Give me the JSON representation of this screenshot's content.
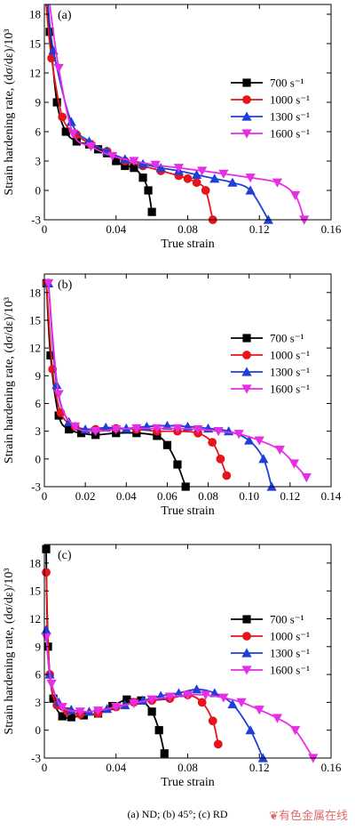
{
  "caption": "(a) ND; (b) 45°; (c) RD",
  "watermark": "有色金属在线",
  "legend": [
    "700 s⁻¹",
    "1000 s⁻¹",
    "1300 s⁻¹",
    "1600 s⁻¹"
  ],
  "colors": [
    "#000000",
    "#e8141b",
    "#1f3fd6",
    "#e62ee6"
  ],
  "markers": [
    "square",
    "circle",
    "triangle-up",
    "triangle-down"
  ],
  "chart_data": [
    {
      "type": "line",
      "panel_label": "(a)",
      "xlabel": "True strain",
      "ylabel": "Strain hardening rate, (dσ/dε)/10³",
      "xlim": [
        0,
        0.16
      ],
      "ylim": [
        -3,
        19
      ],
      "xticks": [
        0,
        0.04,
        0.08,
        0.12,
        0.16
      ],
      "xtick_labels": [
        "0",
        "0.04",
        "0.08",
        "0.12",
        "0.16"
      ],
      "yticks": [
        -3,
        0,
        3,
        6,
        9,
        12,
        15,
        18
      ],
      "legend_position": "right",
      "series": [
        {
          "name": "700 s⁻¹",
          "x": [
            0.001,
            0.003,
            0.007,
            0.012,
            0.018,
            0.025,
            0.03,
            0.035,
            0.04,
            0.045,
            0.05,
            0.055,
            0.058,
            0.06
          ],
          "y": [
            19,
            16.2,
            9.0,
            6.0,
            5.0,
            4.7,
            4.2,
            3.8,
            3.0,
            2.5,
            2.3,
            1.3,
            0.0,
            -2.2
          ]
        },
        {
          "name": "1000 s⁻¹",
          "x": [
            0.001,
            0.004,
            0.01,
            0.018,
            0.026,
            0.035,
            0.045,
            0.055,
            0.065,
            0.075,
            0.08,
            0.085,
            0.09,
            0.094
          ],
          "y": [
            19,
            13.5,
            7.5,
            5.7,
            4.7,
            4.0,
            3.0,
            2.5,
            2.0,
            1.5,
            1.2,
            0.8,
            0.0,
            -3.0
          ]
        },
        {
          "name": "1300 s⁻¹",
          "x": [
            0.002,
            0.005,
            0.015,
            0.025,
            0.035,
            0.045,
            0.055,
            0.065,
            0.075,
            0.085,
            0.095,
            0.105,
            0.115,
            0.125
          ],
          "y": [
            19,
            14.3,
            7.0,
            5.0,
            4.0,
            3.2,
            2.7,
            2.3,
            2.0,
            1.6,
            1.2,
            0.8,
            0.0,
            -3.0
          ]
        },
        {
          "name": "1600 s⁻¹",
          "x": [
            0.003,
            0.008,
            0.016,
            0.026,
            0.038,
            0.05,
            0.062,
            0.075,
            0.088,
            0.1,
            0.115,
            0.13,
            0.14,
            0.145
          ],
          "y": [
            19,
            12.5,
            5.8,
            4.5,
            3.5,
            3.0,
            2.6,
            2.3,
            2.0,
            1.7,
            1.3,
            0.8,
            -0.5,
            -3.0
          ]
        }
      ]
    },
    {
      "type": "line",
      "panel_label": "(b)",
      "xlabel": "True strain",
      "ylabel": "Strain hardening rate, (dσ/dε)/10³",
      "xlim": [
        0,
        0.14
      ],
      "ylim": [
        -3,
        20
      ],
      "xticks": [
        0,
        0.02,
        0.04,
        0.06,
        0.08,
        0.1,
        0.12,
        0.14
      ],
      "xtick_labels": [
        "0",
        "0.02",
        "0.04",
        "0.06",
        "0.08",
        "0.10",
        "0.12",
        "0.14"
      ],
      "yticks": [
        -3,
        0,
        3,
        6,
        9,
        12,
        15,
        18
      ],
      "legend_position": "right",
      "series": [
        {
          "name": "700 s⁻¹",
          "x": [
            0.001,
            0.003,
            0.007,
            0.012,
            0.018,
            0.025,
            0.035,
            0.045,
            0.055,
            0.06,
            0.065,
            0.069
          ],
          "y": [
            19,
            11.2,
            4.7,
            3.2,
            2.8,
            2.6,
            2.8,
            2.8,
            2.5,
            1.5,
            -0.6,
            -3.0
          ]
        },
        {
          "name": "1000 s⁻¹",
          "x": [
            0.001,
            0.004,
            0.008,
            0.015,
            0.025,
            0.035,
            0.045,
            0.055,
            0.065,
            0.075,
            0.082,
            0.086,
            0.089
          ],
          "y": [
            19,
            9.7,
            5.0,
            3.5,
            3.2,
            3.3,
            3.2,
            3.0,
            3.0,
            2.8,
            1.8,
            0.0,
            -1.8
          ]
        },
        {
          "name": "1300 s⁻¹",
          "x": [
            0.002,
            0.006,
            0.012,
            0.02,
            0.03,
            0.04,
            0.05,
            0.06,
            0.07,
            0.08,
            0.09,
            0.1,
            0.107,
            0.111
          ],
          "y": [
            19,
            8.0,
            4.0,
            3.2,
            3.4,
            3.3,
            3.5,
            3.6,
            3.5,
            3.3,
            3.0,
            2.0,
            0.0,
            -3.0
          ]
        },
        {
          "name": "1600 s⁻¹",
          "x": [
            0.002,
            0.007,
            0.015,
            0.025,
            0.035,
            0.045,
            0.055,
            0.065,
            0.075,
            0.085,
            0.095,
            0.105,
            0.115,
            0.122,
            0.128
          ],
          "y": [
            19,
            7.0,
            3.5,
            3.0,
            3.2,
            3.3,
            3.3,
            3.3,
            3.2,
            3.0,
            2.7,
            2.0,
            1.0,
            -0.5,
            -2.0
          ]
        }
      ]
    },
    {
      "type": "line",
      "panel_label": "(c)",
      "xlabel": "True strain",
      "ylabel": "Strain hardening rate, (dσ/dε)/10³",
      "xlim": [
        0,
        0.16
      ],
      "ylim": [
        -3,
        20
      ],
      "xticks": [
        0,
        0.04,
        0.08,
        0.12,
        0.16
      ],
      "xtick_labels": [
        "0",
        "0.04",
        "0.08",
        "0.12",
        "0.16"
      ],
      "yticks": [
        -3,
        0,
        3,
        6,
        9,
        12,
        15,
        18
      ],
      "legend_position": "right",
      "series": [
        {
          "name": "700 s⁻¹",
          "x": [
            0.001,
            0.002,
            0.005,
            0.01,
            0.015,
            0.022,
            0.03,
            0.038,
            0.046,
            0.054,
            0.06,
            0.064,
            0.067
          ],
          "y": [
            19.5,
            9.0,
            3.4,
            1.5,
            1.4,
            1.6,
            1.8,
            2.6,
            3.3,
            3.2,
            2.0,
            0.0,
            -2.5
          ]
        },
        {
          "name": "1000 s⁻¹",
          "x": [
            0.001,
            0.003,
            0.007,
            0.013,
            0.02,
            0.03,
            0.04,
            0.05,
            0.06,
            0.07,
            0.08,
            0.088,
            0.094,
            0.097
          ],
          "y": [
            17.0,
            6.0,
            2.7,
            2.0,
            1.7,
            1.8,
            2.5,
            3.0,
            3.2,
            3.4,
            3.8,
            3.0,
            1.0,
            -1.5
          ]
        },
        {
          "name": "1300 s⁻¹",
          "x": [
            0.001,
            0.003,
            0.008,
            0.015,
            0.025,
            0.035,
            0.045,
            0.055,
            0.065,
            0.075,
            0.085,
            0.095,
            0.105,
            0.115,
            0.122
          ],
          "y": [
            10.8,
            6.0,
            3.0,
            2.2,
            2.0,
            2.3,
            2.7,
            3.2,
            3.7,
            4.0,
            4.4,
            4.0,
            2.8,
            0.0,
            -3.0
          ]
        },
        {
          "name": "1600 s⁻¹",
          "x": [
            0.001,
            0.004,
            0.01,
            0.02,
            0.03,
            0.04,
            0.05,
            0.06,
            0.07,
            0.08,
            0.09,
            0.1,
            0.11,
            0.12,
            0.13,
            0.14,
            0.15
          ],
          "y": [
            10.0,
            5.0,
            2.5,
            2.0,
            2.1,
            2.5,
            2.9,
            3.3,
            3.6,
            3.8,
            3.8,
            3.5,
            3.0,
            2.2,
            1.3,
            0.0,
            -3.0
          ]
        }
      ]
    }
  ]
}
